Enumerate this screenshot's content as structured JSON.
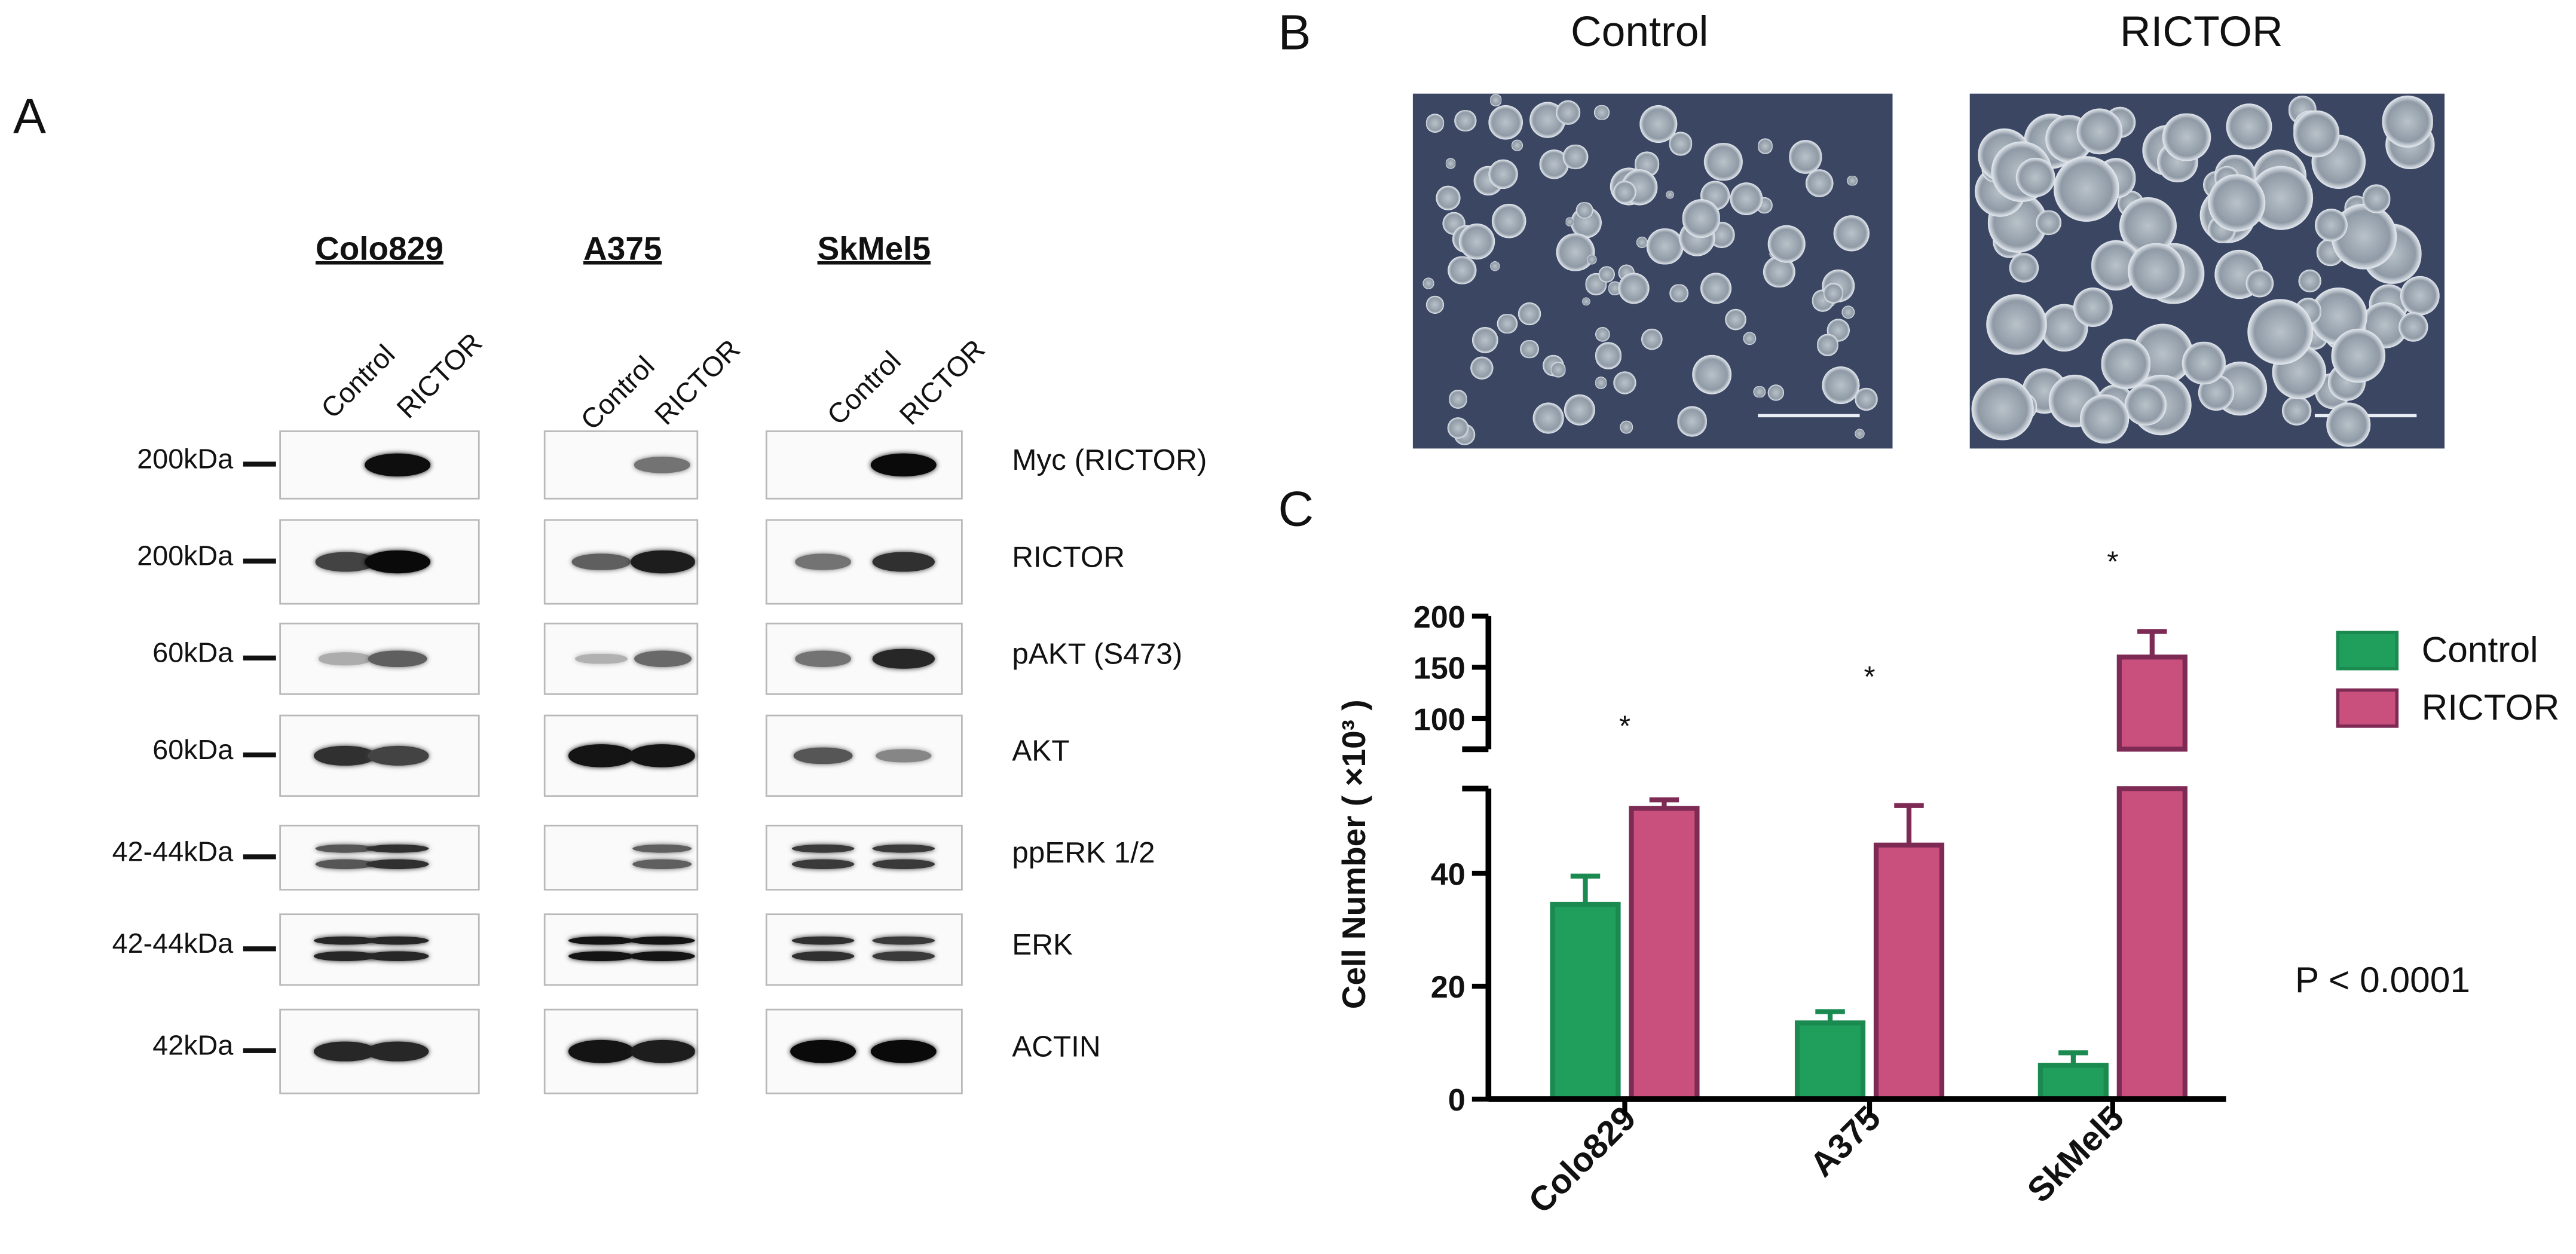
{
  "panel_a": {
    "letter": "A",
    "cell_lines": [
      "Colo829",
      "A375",
      "SkMel5"
    ],
    "lanes": [
      "Control",
      "RICTOR"
    ],
    "rows": [
      {
        "kda": "200kDa",
        "protein": "Myc (RICTOR)",
        "bands": [
          [
            0.0,
            0.98
          ],
          [
            0.0,
            0.45
          ],
          [
            0.0,
            1.0
          ]
        ]
      },
      {
        "kda": "200kDa",
        "protein": "RICTOR",
        "bands": [
          [
            0.7,
            1.0
          ],
          [
            0.55,
            0.9
          ],
          [
            0.45,
            0.8
          ]
        ]
      },
      {
        "kda": "60kDa",
        "protein": "pAKT (S473)",
        "bands": [
          [
            0.15,
            0.55
          ],
          [
            0.12,
            0.5
          ],
          [
            0.45,
            0.85
          ]
        ]
      },
      {
        "kda": "60kDa",
        "protein": "AKT",
        "bands": [
          [
            0.8,
            0.7
          ],
          [
            0.95,
            0.95
          ],
          [
            0.6,
            0.35
          ]
        ]
      },
      {
        "kda": "42-44kDa",
        "protein": "ppERK 1/2",
        "bands": [
          [
            0.6,
            0.8
          ],
          [
            0.0,
            0.55
          ],
          [
            0.75,
            0.75
          ]
        ]
      },
      {
        "kda": "42-44kDa",
        "protein": "ERK",
        "bands": [
          [
            0.85,
            0.85
          ],
          [
            0.95,
            0.95
          ],
          [
            0.8,
            0.75
          ]
        ]
      },
      {
        "kda": "42kDa",
        "protein": "ACTIN",
        "bands": [
          [
            0.85,
            0.85
          ],
          [
            0.95,
            0.9
          ],
          [
            1.0,
            1.0
          ]
        ]
      }
    ]
  },
  "panel_b": {
    "letter": "B",
    "images": [
      {
        "title": "Control"
      },
      {
        "title": "RICTOR"
      }
    ]
  },
  "panel_c": {
    "letter": "C",
    "pvalue_text": "P < 0.0001",
    "significance_mark": "*",
    "colors": {
      "control": "#1f9e5c",
      "rictor": "#c94f7c",
      "rictor_edge": "#7d2a55",
      "control_edge": "#1a8a50"
    }
  },
  "chart_data": {
    "type": "bar",
    "categories": [
      "Colo829",
      "A375",
      "SkMel5"
    ],
    "series": [
      {
        "name": "Control",
        "values": [
          34.5,
          13.5,
          6.0
        ],
        "errors": [
          5.0,
          2.0,
          2.2
        ]
      },
      {
        "name": "RICTOR",
        "values": [
          51.5,
          45.0,
          160.0
        ],
        "errors": [
          1.5,
          7.0,
          25.0
        ]
      }
    ],
    "ylabel": "Cell Number ( ×10³ )",
    "y_axis": {
      "broken": true,
      "lower_range": [
        0,
        55
      ],
      "lower_ticks": [
        0,
        20,
        40
      ],
      "upper_range": [
        70,
        200
      ],
      "upper_ticks": [
        100,
        150,
        200
      ]
    },
    "significance": [
      "*",
      "*",
      "*"
    ],
    "legend": [
      "Control",
      "RICTOR"
    ],
    "legend_position": "right"
  }
}
